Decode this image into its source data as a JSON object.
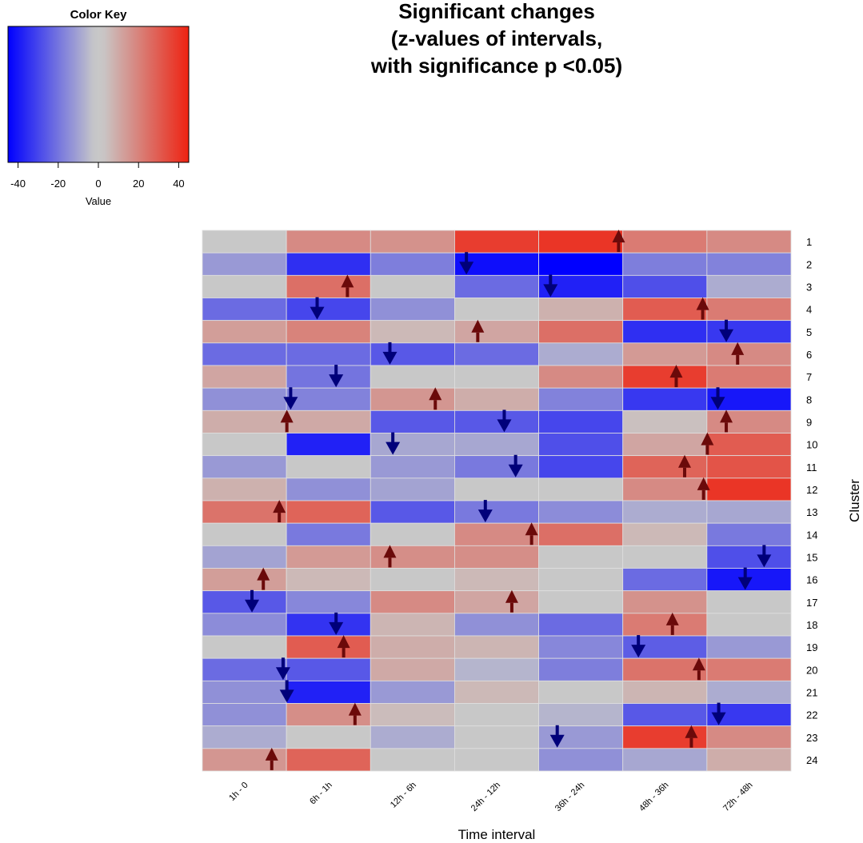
{
  "chart_data": {
    "type": "heatmap",
    "title": [
      "Significant changes",
      "(z-values of intervals,",
      "with significance p <0.05)"
    ],
    "xlabel": "Time interval",
    "ylabel": "Cluster",
    "columns": [
      "1h - 0",
      "6h - 1h",
      "12h - 6h",
      "24h - 12h",
      "36h - 24h",
      "48h - 36h",
      "72h - 48h"
    ],
    "rows": [
      "1",
      "2",
      "3",
      "4",
      "5",
      "6",
      "7",
      "8",
      "9",
      "10",
      "11",
      "12",
      "13",
      "14",
      "15",
      "16",
      "17",
      "18",
      "19",
      "20",
      "21",
      "22",
      "23",
      "24"
    ],
    "values": [
      [
        0,
        18,
        16,
        38,
        40,
        22,
        18
      ],
      [
        -12,
        -35,
        -18,
        -42,
        -45,
        -18,
        -17
      ],
      [
        0,
        25,
        0,
        -22,
        -38,
        -28,
        -8
      ],
      [
        -22,
        -30,
        -14,
        0,
        8,
        30,
        22
      ],
      [
        13,
        20,
        6,
        11,
        25,
        -35,
        -33
      ],
      [
        -22,
        -22,
        -26,
        -22,
        -8,
        14,
        18
      ],
      [
        11,
        -20,
        0,
        0,
        18,
        38,
        22
      ],
      [
        -14,
        -17,
        15,
        9,
        -17,
        -33,
        -40
      ],
      [
        9,
        10,
        -26,
        -26,
        -30,
        4,
        18
      ],
      [
        0,
        -38,
        -9,
        -9,
        -28,
        11,
        30
      ],
      [
        -12,
        0,
        -12,
        -19,
        -30,
        28,
        32
      ],
      [
        8,
        -14,
        -10,
        0,
        0,
        18,
        40
      ],
      [
        24,
        28,
        -26,
        -19,
        -15,
        -8,
        -9
      ],
      [
        0,
        -19,
        0,
        18,
        25,
        6,
        -19
      ],
      [
        -10,
        14,
        17,
        17,
        0,
        0,
        -28
      ],
      [
        13,
        6,
        0,
        6,
        0,
        -22,
        -40
      ],
      [
        -26,
        -16,
        18,
        11,
        0,
        16,
        0
      ],
      [
        -15,
        -34,
        7,
        -14,
        -22,
        22,
        0
      ],
      [
        0,
        30,
        9,
        7,
        -16,
        -25,
        -12
      ],
      [
        -22,
        -26,
        10,
        -6,
        -18,
        24,
        22
      ],
      [
        -14,
        -38,
        -12,
        6,
        0,
        7,
        -8
      ],
      [
        -14,
        17,
        5,
        0,
        -6,
        -26,
        -33
      ],
      [
        -8,
        0,
        -8,
        0,
        -12,
        38,
        18
      ],
      [
        15,
        28,
        0,
        0,
        -14,
        -9,
        9
      ]
    ],
    "markers": [
      {
        "row": "1",
        "col": "36h - 24h",
        "dir": "up",
        "z": 1.0
      },
      {
        "row": "2",
        "col": "24h - 12h",
        "dir": "down",
        "z": -0.8
      },
      {
        "row": "3",
        "col": "6h - 1h",
        "dir": "up",
        "z": 0.5
      },
      {
        "row": "3",
        "col": "36h - 24h",
        "dir": "down",
        "z": -0.8
      },
      {
        "row": "4",
        "col": "6h - 1h",
        "dir": "down",
        "z": -0.3
      },
      {
        "row": "4",
        "col": "48h - 36h",
        "dir": "up",
        "z": 1.0
      },
      {
        "row": "5",
        "col": "24h - 12h",
        "dir": "up",
        "z": -0.5
      },
      {
        "row": "5",
        "col": "72h - 48h",
        "dir": "down",
        "z": -0.6
      },
      {
        "row": "6",
        "col": "12h - 6h",
        "dir": "down",
        "z": -0.6
      },
      {
        "row": "6",
        "col": "72h - 48h",
        "dir": "up",
        "z": -0.3
      },
      {
        "row": "7",
        "col": "6h - 1h",
        "dir": "down",
        "z": 0.2
      },
      {
        "row": "7",
        "col": "48h - 36h",
        "dir": "up",
        "z": 0.3
      },
      {
        "row": "8",
        "col": "6h - 1h",
        "dir": "down",
        "z": -1.0
      },
      {
        "row": "8",
        "col": "12h - 6h",
        "dir": "up",
        "z": 0.6
      },
      {
        "row": "8",
        "col": "48h - 36h",
        "dir": "down",
        "z": 1.4
      },
      {
        "row": "9",
        "col": "6h - 1h",
        "dir": "up",
        "z": -1.1
      },
      {
        "row": "9",
        "col": "24h - 12h",
        "dir": "down",
        "z": 0.2
      },
      {
        "row": "9",
        "col": "72h - 48h",
        "dir": "up",
        "z": -0.6
      },
      {
        "row": "10",
        "col": "6h - 1h",
        "dir": "down",
        "z": 1.7
      },
      {
        "row": "10",
        "col": "72h - 48h",
        "dir": "up",
        "z": -1.1
      },
      {
        "row": "11",
        "col": "24h - 12h",
        "dir": "down",
        "z": 0.5
      },
      {
        "row": "11",
        "col": "72h - 48h",
        "dir": "up",
        "z": -1.7
      },
      {
        "row": "12",
        "col": "72h - 48h",
        "dir": "up",
        "z": -1.2
      },
      {
        "row": "13",
        "col": "6h - 1h",
        "dir": "up",
        "z": -1.3
      },
      {
        "row": "13",
        "col": "24h - 12h",
        "dir": "down",
        "z": -0.3
      },
      {
        "row": "14",
        "col": "36h - 24h",
        "dir": "up",
        "z": -1.3
      },
      {
        "row": "15",
        "col": "12h - 6h",
        "dir": "up",
        "z": -0.6
      },
      {
        "row": "15",
        "col": "72h - 48h",
        "dir": "down",
        "z": 0.4
      },
      {
        "row": "16",
        "col": "1h - 0",
        "dir": "up",
        "z": 0.5
      },
      {
        "row": "16",
        "col": "72h - 48h",
        "dir": "down",
        "z": -0.1
      },
      {
        "row": "17",
        "col": "1h - 0",
        "dir": "down",
        "z": 0.2
      },
      {
        "row": "17",
        "col": "24h - 12h",
        "dir": "up",
        "z": 0.4
      },
      {
        "row": "18",
        "col": "6h - 1h",
        "dir": "down",
        "z": 0.2
      },
      {
        "row": "18",
        "col": "48h - 36h",
        "dir": "up",
        "z": 0.2
      },
      {
        "row": "19",
        "col": "6h - 1h",
        "dir": "up",
        "z": 0.4
      },
      {
        "row": "19",
        "col": "48h - 36h",
        "dir": "down",
        "z": -0.7
      },
      {
        "row": "20",
        "col": "6h - 1h",
        "dir": "down",
        "z": -1.2
      },
      {
        "row": "20",
        "col": "48h - 36h",
        "dir": "up",
        "z": 0.9
      },
      {
        "row": "21",
        "col": "6h - 1h",
        "dir": "down",
        "z": -1.1
      },
      {
        "row": "22",
        "col": "6h - 1h",
        "dir": "up",
        "z": 0.7
      },
      {
        "row": "22",
        "col": "72h - 48h",
        "dir": "down",
        "z": -0.8
      },
      {
        "row": "23",
        "col": "24h - 12h",
        "dir": "down",
        "z": 1.6
      },
      {
        "row": "23",
        "col": "48h - 36h",
        "dir": "up",
        "z": 0.7
      },
      {
        "row": "24",
        "col": "6h - 1h",
        "dir": "up",
        "z": -1.5
      }
    ],
    "color_key": {
      "title": "Color Key",
      "xlabel": "Value",
      "ticks": [
        -40,
        -20,
        0,
        20,
        40
      ],
      "range": [
        -45,
        45
      ],
      "low_color": "#0000ff",
      "mid_color": "#c8c8c8",
      "high_color": "#ee2211"
    },
    "grid": false
  },
  "colors": {
    "up_arrow": "#6b0a0a",
    "down_arrow": "#00007a",
    "cell_border": "#e0e0e0"
  }
}
